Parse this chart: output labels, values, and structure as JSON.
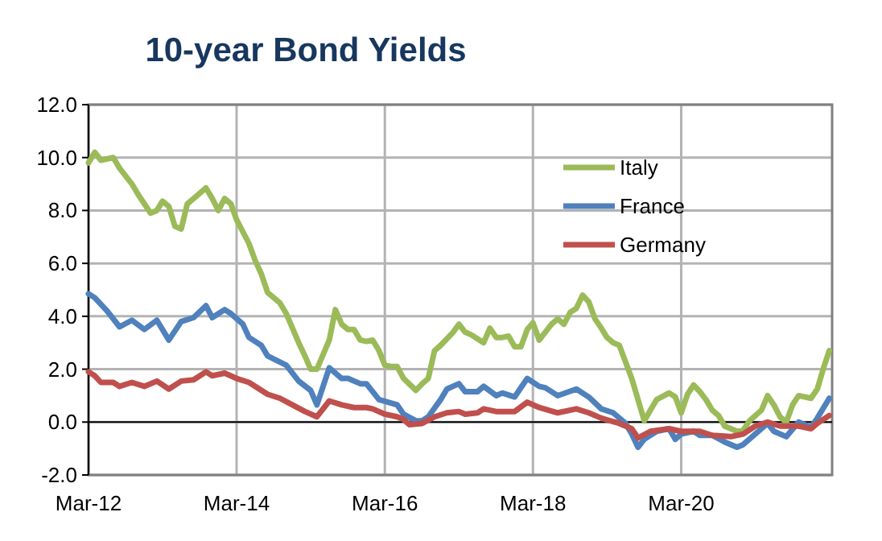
{
  "chart_data": {
    "type": "line",
    "title": "10-year Bond Yields",
    "xlim": [
      "2012-03",
      "2022-03-15"
    ],
    "xticks": [
      {
        "value": "2012-03",
        "label": "Mar-12"
      },
      {
        "value": "2014-03",
        "label": "Mar-14"
      },
      {
        "value": "2016-03",
        "label": "Mar-16"
      },
      {
        "value": "2018-03",
        "label": "Mar-18"
      },
      {
        "value": "2020-03",
        "label": "Mar-20"
      }
    ],
    "ylim": [
      -2,
      12
    ],
    "yticks": [
      {
        "value": -2,
        "label": "-2.0"
      },
      {
        "value": 0,
        "label": "0.0"
      },
      {
        "value": 2,
        "label": "2.0"
      },
      {
        "value": 4,
        "label": "4.0"
      },
      {
        "value": 6,
        "label": "6.0"
      },
      {
        "value": 8,
        "label": "8.0"
      },
      {
        "value": 10,
        "label": "10.0"
      },
      {
        "value": 12,
        "label": "12.0"
      }
    ],
    "ref_lines": [
      {
        "axis": "y",
        "value": 0,
        "color": "#000000"
      }
    ],
    "grid": true,
    "legend": "top right",
    "marker": "none",
    "line_style": "solid",
    "series": [
      {
        "name": "Italy",
        "color": "#9bbb59",
        "x": [
          "2012-03",
          "2012-04",
          "2012-05",
          "2012-07",
          "2012-08",
          "2012-10",
          "2012-11",
          "2013-01",
          "2013-02",
          "2013-03",
          "2013-04",
          "2013-05",
          "2013-06",
          "2013-07",
          "2013-08",
          "2013-10",
          "2013-11",
          "2013-12",
          "2014-01",
          "2014-02",
          "2014-03",
          "2014-05",
          "2014-06",
          "2014-07",
          "2014-08",
          "2014-10",
          "2014-11",
          "2015-01",
          "2015-02",
          "2015-03",
          "2015-04",
          "2015-06",
          "2015-07",
          "2015-08",
          "2015-09",
          "2015-10",
          "2015-11",
          "2015-12",
          "2016-01",
          "2016-02",
          "2016-03",
          "2016-04",
          "2016-05",
          "2016-06",
          "2016-08",
          "2016-09",
          "2016-10",
          "2016-11",
          "2016-12",
          "2017-02",
          "2017-03",
          "2017-04",
          "2017-05",
          "2017-07",
          "2017-08",
          "2017-09",
          "2017-10",
          "2017-11",
          "2017-12",
          "2018-01",
          "2018-02",
          "2018-03",
          "2018-04",
          "2018-06",
          "2018-07",
          "2018-08",
          "2018-09",
          "2018-10",
          "2018-11",
          "2018-12",
          "2019-01",
          "2019-02",
          "2019-03",
          "2019-04",
          "2019-05",
          "2019-07",
          "2019-08",
          "2019-09",
          "2019-10",
          "2019-11",
          "2020-01",
          "2020-02",
          "2020-03",
          "2020-04",
          "2020-05",
          "2020-06",
          "2020-07",
          "2020-08",
          "2020-09",
          "2020-10",
          "2020-12",
          "2021-01",
          "2021-02",
          "2021-04",
          "2021-05",
          "2021-06",
          "2021-07",
          "2021-08",
          "2021-09",
          "2021-10",
          "2021-12",
          "2022-01",
          "2022-02",
          "2022-03"
        ],
        "values": [
          9.8,
          10.2,
          9.9,
          10.0,
          9.6,
          9.0,
          8.6,
          7.9,
          8.0,
          8.35,
          8.15,
          7.4,
          7.3,
          8.25,
          8.45,
          8.85,
          8.45,
          8.0,
          8.45,
          8.25,
          7.65,
          6.75,
          6.1,
          5.6,
          4.9,
          4.5,
          4.1,
          3.0,
          2.5,
          2.0,
          2.0,
          3.1,
          4.25,
          3.7,
          3.5,
          3.5,
          3.1,
          3.05,
          3.1,
          2.7,
          2.15,
          2.1,
          2.1,
          1.65,
          1.2,
          1.45,
          1.65,
          2.7,
          2.9,
          3.4,
          3.7,
          3.4,
          3.3,
          3.0,
          3.55,
          3.2,
          3.2,
          3.25,
          2.85,
          2.85,
          3.5,
          3.75,
          3.1,
          3.7,
          3.9,
          3.7,
          4.15,
          4.3,
          4.8,
          4.55,
          3.9,
          3.55,
          3.2,
          3.0,
          2.9,
          1.65,
          0.85,
          0.05,
          0.45,
          0.85,
          1.1,
          0.95,
          0.35,
          1.05,
          1.4,
          1.15,
          0.85,
          0.45,
          0.25,
          -0.15,
          -0.35,
          -0.3,
          0.05,
          0.45,
          1.0,
          0.65,
          0.2,
          0.0,
          0.65,
          1.0,
          0.9,
          1.25,
          2.05,
          2.7
        ]
      },
      {
        "name": "France",
        "color": "#4f81bd",
        "x": [
          "2012-03",
          "2012-04",
          "2012-06",
          "2012-08",
          "2012-10",
          "2012-12",
          "2013-02",
          "2013-04",
          "2013-06",
          "2013-08",
          "2013-10",
          "2013-11",
          "2014-01",
          "2014-02",
          "2014-04",
          "2014-05",
          "2014-07",
          "2014-08",
          "2014-11",
          "2015-01",
          "2015-03",
          "2015-04",
          "2015-06",
          "2015-08",
          "2015-09",
          "2015-11",
          "2015-12",
          "2016-02",
          "2016-05",
          "2016-06",
          "2016-08",
          "2016-09",
          "2016-10",
          "2016-12",
          "2017-01",
          "2017-03",
          "2017-04",
          "2017-06",
          "2017-07",
          "2017-09",
          "2017-10",
          "2017-12",
          "2018-02",
          "2018-04",
          "2018-05",
          "2018-07",
          "2018-10",
          "2018-12",
          "2019-02",
          "2019-04",
          "2019-06",
          "2019-07",
          "2019-08",
          "2019-09",
          "2019-11",
          "2020-01",
          "2020-02",
          "2020-03",
          "2020-05",
          "2020-06",
          "2020-08",
          "2020-10",
          "2020-12",
          "2021-01",
          "2021-03",
          "2021-05",
          "2021-06",
          "2021-08",
          "2021-10",
          "2021-12",
          "2022-01",
          "2022-03"
        ],
        "values": [
          4.85,
          4.7,
          4.2,
          3.6,
          3.85,
          3.5,
          3.85,
          3.1,
          3.8,
          3.95,
          4.4,
          3.95,
          4.25,
          4.1,
          3.7,
          3.2,
          2.9,
          2.5,
          2.15,
          1.55,
          1.2,
          0.65,
          2.05,
          1.65,
          1.65,
          1.45,
          1.45,
          0.85,
          0.65,
          0.3,
          0.05,
          0.05,
          0.2,
          0.85,
          1.25,
          1.45,
          1.15,
          1.15,
          1.35,
          1.0,
          1.1,
          0.95,
          1.65,
          1.35,
          1.3,
          1.0,
          1.25,
          0.95,
          0.5,
          0.35,
          -0.05,
          -0.45,
          -0.95,
          -0.65,
          -0.35,
          -0.25,
          -0.65,
          -0.45,
          -0.35,
          -0.5,
          -0.5,
          -0.75,
          -0.95,
          -0.85,
          -0.45,
          -0.05,
          -0.35,
          -0.55,
          0.0,
          -0.2,
          0.15,
          0.9
        ]
      },
      {
        "name": "Germany",
        "color": "#c0504d",
        "x": [
          "2012-03",
          "2012-04",
          "2012-05",
          "2012-07",
          "2012-08",
          "2012-10",
          "2012-12",
          "2013-02",
          "2013-04",
          "2013-06",
          "2013-08",
          "2013-10",
          "2013-11",
          "2014-01",
          "2014-03",
          "2014-05",
          "2014-06",
          "2014-08",
          "2014-10",
          "2014-12",
          "2015-02",
          "2015-04",
          "2015-06",
          "2015-08",
          "2015-10",
          "2015-12",
          "2016-01",
          "2016-03",
          "2016-05",
          "2016-06",
          "2016-07",
          "2016-09",
          "2016-11",
          "2017-01",
          "2017-03",
          "2017-04",
          "2017-06",
          "2017-07",
          "2017-09",
          "2017-12",
          "2018-02",
          "2018-04",
          "2018-07",
          "2018-10",
          "2018-12",
          "2019-02",
          "2019-05",
          "2019-07",
          "2019-08",
          "2019-10",
          "2020-01",
          "2020-03",
          "2020-06",
          "2020-08",
          "2020-11",
          "2021-01",
          "2021-03",
          "2021-05",
          "2021-07",
          "2021-10",
          "2021-12",
          "2022-01",
          "2022-03"
        ],
        "values": [
          1.9,
          1.75,
          1.5,
          1.5,
          1.35,
          1.5,
          1.35,
          1.55,
          1.25,
          1.55,
          1.6,
          1.9,
          1.75,
          1.85,
          1.65,
          1.5,
          1.35,
          1.05,
          0.9,
          0.65,
          0.4,
          0.2,
          0.8,
          0.65,
          0.55,
          0.55,
          0.5,
          0.3,
          0.2,
          0.1,
          -0.1,
          -0.05,
          0.2,
          0.35,
          0.4,
          0.3,
          0.35,
          0.5,
          0.4,
          0.4,
          0.75,
          0.55,
          0.35,
          0.5,
          0.35,
          0.15,
          -0.05,
          -0.25,
          -0.6,
          -0.35,
          -0.25,
          -0.35,
          -0.35,
          -0.5,
          -0.55,
          -0.45,
          -0.15,
          0.0,
          -0.15,
          -0.15,
          -0.25,
          -0.05,
          0.25
        ]
      }
    ]
  }
}
